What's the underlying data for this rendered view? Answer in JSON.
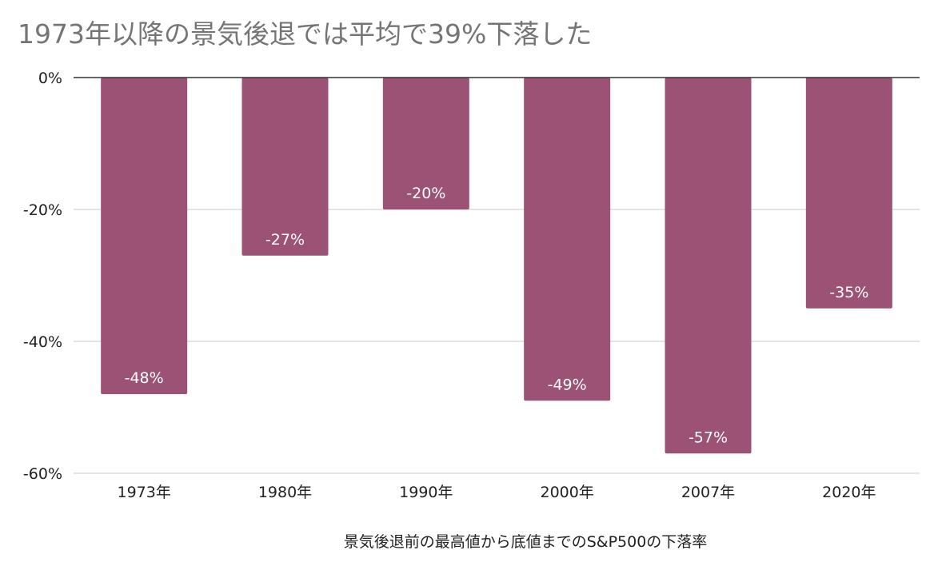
{
  "chart_data": {
    "type": "bar",
    "title": "1973年以降の景気後退では平均で39%下落した",
    "xlabel": "景気後退前の最高値から底値までのS&P500の下落率",
    "ylabel": "",
    "categories": [
      "1973年",
      "1980年",
      "1990年",
      "2000年",
      "2007年",
      "2020年"
    ],
    "values": [
      -48,
      -27,
      -20,
      -49,
      -57,
      -35
    ],
    "data_labels": [
      "-48%",
      "-27%",
      "-20%",
      "-49%",
      "-57%",
      "-35%"
    ],
    "ylim": [
      -60,
      0
    ],
    "yticks": [
      0,
      -20,
      -40,
      -60
    ],
    "ytick_labels": [
      "0%",
      "-20%",
      "-40%",
      "-60%"
    ],
    "grid": true,
    "legend": "none",
    "bar_color": "#9b5274"
  }
}
